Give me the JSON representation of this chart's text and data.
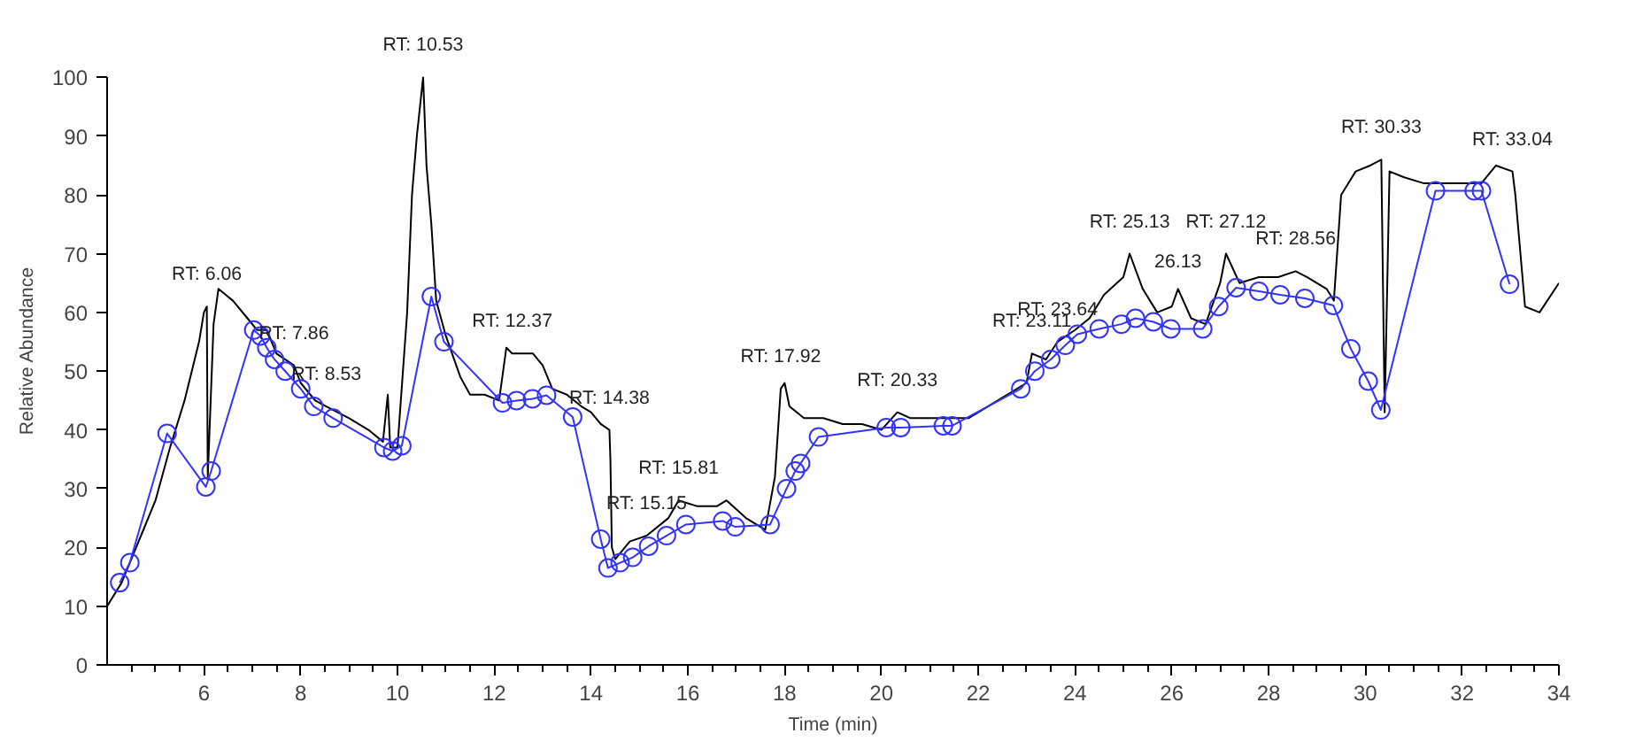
{
  "chart_data": {
    "type": "line",
    "xlabel": "Time (min)",
    "ylabel": "Relative Abundance",
    "xlim": [
      4,
      34
    ],
    "ylim": [
      0,
      100
    ],
    "xticks": [
      {
        "value": 4.5,
        "label": null
      },
      {
        "value": 5,
        "label": null
      },
      {
        "value": 5.5,
        "label": null
      },
      6,
      {
        "value": 6.5,
        "label": null
      },
      {
        "value": 7,
        "label": null
      },
      {
        "value": 7.5,
        "label": null
      },
      8,
      {
        "value": 8.5,
        "label": null
      },
      {
        "value": 9,
        "label": null
      },
      {
        "value": 9.5,
        "label": null
      },
      10,
      {
        "value": 10.5,
        "label": null
      },
      {
        "value": 11,
        "label": null
      },
      {
        "value": 11.5,
        "label": null
      },
      12,
      {
        "value": 12.5,
        "label": null
      },
      {
        "value": 13,
        "label": null
      },
      {
        "value": 13.5,
        "label": null
      },
      14,
      {
        "value": 14.5,
        "label": null
      },
      {
        "value": 15,
        "label": null
      },
      {
        "value": 15.5,
        "label": null
      },
      16,
      {
        "value": 16.5,
        "label": null
      },
      {
        "value": 17,
        "label": null
      },
      {
        "value": 17.5,
        "label": null
      },
      18,
      {
        "value": 18.5,
        "label": null
      },
      {
        "value": 19,
        "label": null
      },
      {
        "value": 19.5,
        "label": null
      },
      20,
      {
        "value": 20.5,
        "label": null
      },
      {
        "value": 21,
        "label": null
      },
      {
        "value": 21.5,
        "label": null
      },
      22,
      {
        "value": 22.5,
        "label": null
      },
      {
        "value": 23,
        "label": null
      },
      {
        "value": 23.5,
        "label": null
      },
      24,
      {
        "value": 24.5,
        "label": null
      },
      {
        "value": 25,
        "label": null
      },
      {
        "value": 25.5,
        "label": null
      },
      26,
      {
        "value": 26.5,
        "label": null
      },
      {
        "value": 27,
        "label": null
      },
      {
        "value": 27.5,
        "label": null
      },
      28,
      {
        "value": 28.5,
        "label": null
      },
      {
        "value": 29,
        "label": null
      },
      {
        "value": 29.5,
        "label": null
      },
      30,
      {
        "value": 30.5,
        "label": null
      },
      {
        "value": 31,
        "label": null
      },
      {
        "value": 31.5,
        "label": null
      },
      32,
      {
        "value": 32.5,
        "label": null
      },
      {
        "value": 33,
        "label": null
      },
      {
        "value": 33.5,
        "label": null
      },
      34
    ],
    "yticks": [
      0,
      10,
      20,
      30,
      40,
      50,
      60,
      70,
      80,
      90,
      100
    ],
    "grid": false,
    "series": [
      {
        "color": "#000000",
        "marker": "none",
        "x": [
          4.0,
          4.3,
          4.5,
          4.8,
          5.0,
          5.3,
          5.6,
          5.9,
          6.0,
          6.06,
          6.08,
          6.2,
          6.3,
          6.6,
          6.9,
          7.1,
          7.3,
          7.5,
          7.86,
          8.0,
          8.3,
          8.53,
          9.0,
          9.4,
          9.7,
          9.8,
          9.85,
          10.0,
          10.2,
          10.3,
          10.4,
          10.53,
          10.6,
          10.7,
          10.8,
          11.0,
          11.3,
          11.5,
          11.8,
          12.1,
          12.25,
          12.37,
          12.8,
          13.0,
          13.2,
          13.5,
          13.8,
          14.0,
          14.2,
          14.38,
          14.4,
          14.43,
          14.5,
          14.8,
          15.15,
          15.6,
          15.81,
          16.2,
          16.6,
          16.8,
          17.2,
          17.6,
          17.8,
          17.92,
          18.0,
          18.1,
          18.4,
          18.8,
          19.2,
          19.6,
          20.0,
          20.33,
          20.6,
          21.0,
          21.4,
          21.8,
          22.2,
          22.6,
          23.0,
          23.11,
          23.4,
          23.64,
          24.0,
          24.3,
          24.6,
          25.0,
          25.13,
          25.4,
          25.7,
          26.0,
          26.13,
          26.4,
          26.7,
          27.0,
          27.12,
          27.4,
          27.8,
          28.2,
          28.56,
          28.8,
          29.2,
          29.35,
          29.5,
          29.8,
          30.1,
          30.33,
          30.4,
          30.5,
          30.8,
          31.2,
          31.6,
          32.0,
          32.4,
          32.7,
          33.04,
          33.1,
          33.3,
          33.6,
          34.0
        ],
        "values": [
          10,
          14,
          18,
          24,
          28,
          37,
          45,
          55,
          60,
          61,
          32,
          58,
          64,
          62,
          59,
          57,
          57,
          53,
          51,
          48,
          45,
          44,
          42,
          40,
          38,
          46,
          37,
          37,
          60,
          80,
          90,
          100,
          85,
          75,
          62,
          56,
          49,
          46,
          46,
          45,
          54,
          53,
          53,
          51,
          47,
          46,
          44,
          43,
          41,
          40,
          35,
          20,
          18,
          21,
          22,
          25,
          28,
          27,
          27,
          28,
          25,
          23,
          32,
          47,
          48,
          44,
          42,
          42,
          41,
          41,
          40,
          43,
          42,
          42,
          42,
          42,
          44,
          46,
          48,
          53,
          52,
          55,
          57,
          59,
          63,
          66,
          70,
          64,
          60,
          61,
          64,
          59,
          58,
          65,
          70,
          65,
          66,
          66,
          67,
          66,
          64,
          62,
          80,
          84,
          85,
          86,
          43,
          84,
          83,
          82,
          82,
          82,
          82,
          85,
          84,
          80,
          61,
          60,
          65
        ]
      },
      {
        "color": "#3333ff",
        "marker": "circle",
        "x": [
          4.26,
          4.47,
          5.24,
          6.04,
          6.15,
          7.03,
          7.17,
          7.3,
          7.46,
          7.68,
          8.0,
          8.27,
          8.67,
          9.72,
          9.9,
          10.09,
          10.7,
          10.96,
          12.17,
          12.46,
          12.79,
          13.08,
          13.62,
          14.2,
          14.35,
          14.6,
          14.86,
          15.19,
          15.56,
          15.96,
          16.72,
          16.98,
          17.7,
          18.04,
          18.22,
          18.33,
          18.7,
          20.1,
          20.4,
          21.28,
          21.46,
          22.88,
          23.17,
          23.5,
          23.8,
          24.05,
          24.5,
          24.96,
          25.25,
          25.62,
          25.98,
          26.64,
          26.97,
          27.33,
          27.8,
          28.24,
          28.75,
          29.34,
          29.7,
          30.06,
          30.32,
          31.45,
          32.25,
          32.4,
          32.98
        ],
        "values": [
          14,
          17.4,
          39.4,
          30.3,
          33,
          57,
          56,
          54,
          52,
          50,
          47,
          44,
          42,
          37,
          36.4,
          37.3,
          62.7,
          55,
          44.6,
          45,
          45.3,
          45.9,
          42.2,
          21.4,
          16.5,
          17.4,
          18.3,
          20.2,
          22,
          23.9,
          24.5,
          23.5,
          23.9,
          30,
          33,
          34.3,
          38.8,
          40.4,
          40.4,
          40.7,
          40.7,
          47,
          50,
          52,
          54.4,
          56.3,
          57.2,
          58,
          59,
          58.4,
          57.2,
          57.2,
          61,
          64.2,
          63.6,
          63,
          62.4,
          61.2,
          53.8,
          48.3,
          43.4,
          80.7,
          80.7,
          80.7,
          64.8
        ]
      }
    ],
    "annotations": [
      {
        "text": "RT: 6.06",
        "x": 6.06,
        "y": 61
      },
      {
        "text": "RT: 7.86",
        "x": 7.86,
        "y": 51
      },
      {
        "text": "RT: 8.53",
        "x": 8.53,
        "y": 44
      },
      {
        "text": "RT: 10.53",
        "x": 10.53,
        "y": 100
      },
      {
        "text": "RT: 12.37",
        "x": 12.37,
        "y": 53
      },
      {
        "text": "RT: 14.38",
        "x": 14.38,
        "y": 40
      },
      {
        "text": "RT: 15.15",
        "x": 15.15,
        "y": 22
      },
      {
        "text": "RT: 15.81",
        "x": 15.81,
        "y": 28
      },
      {
        "text": "RT: 17.92",
        "x": 17.92,
        "y": 47
      },
      {
        "text": "RT: 20.33",
        "x": 20.33,
        "y": 43
      },
      {
        "text": "RT: 23.11",
        "x": 23.11,
        "y": 53
      },
      {
        "text": "RT: 23.64",
        "x": 23.64,
        "y": 55
      },
      {
        "text": "RT: 25.13",
        "x": 25.13,
        "y": 70
      },
      {
        "text": "26.13",
        "x": 26.13,
        "y": 64
      },
      {
        "text": "RT: 27.12",
        "x": 27.12,
        "y": 70
      },
      {
        "text": "RT: 28.56",
        "x": 28.56,
        "y": 67
      },
      {
        "text": "RT: 30.33",
        "x": 30.33,
        "y": 86
      },
      {
        "text": "RT: 33.04",
        "x": 33.04,
        "y": 84
      }
    ]
  }
}
